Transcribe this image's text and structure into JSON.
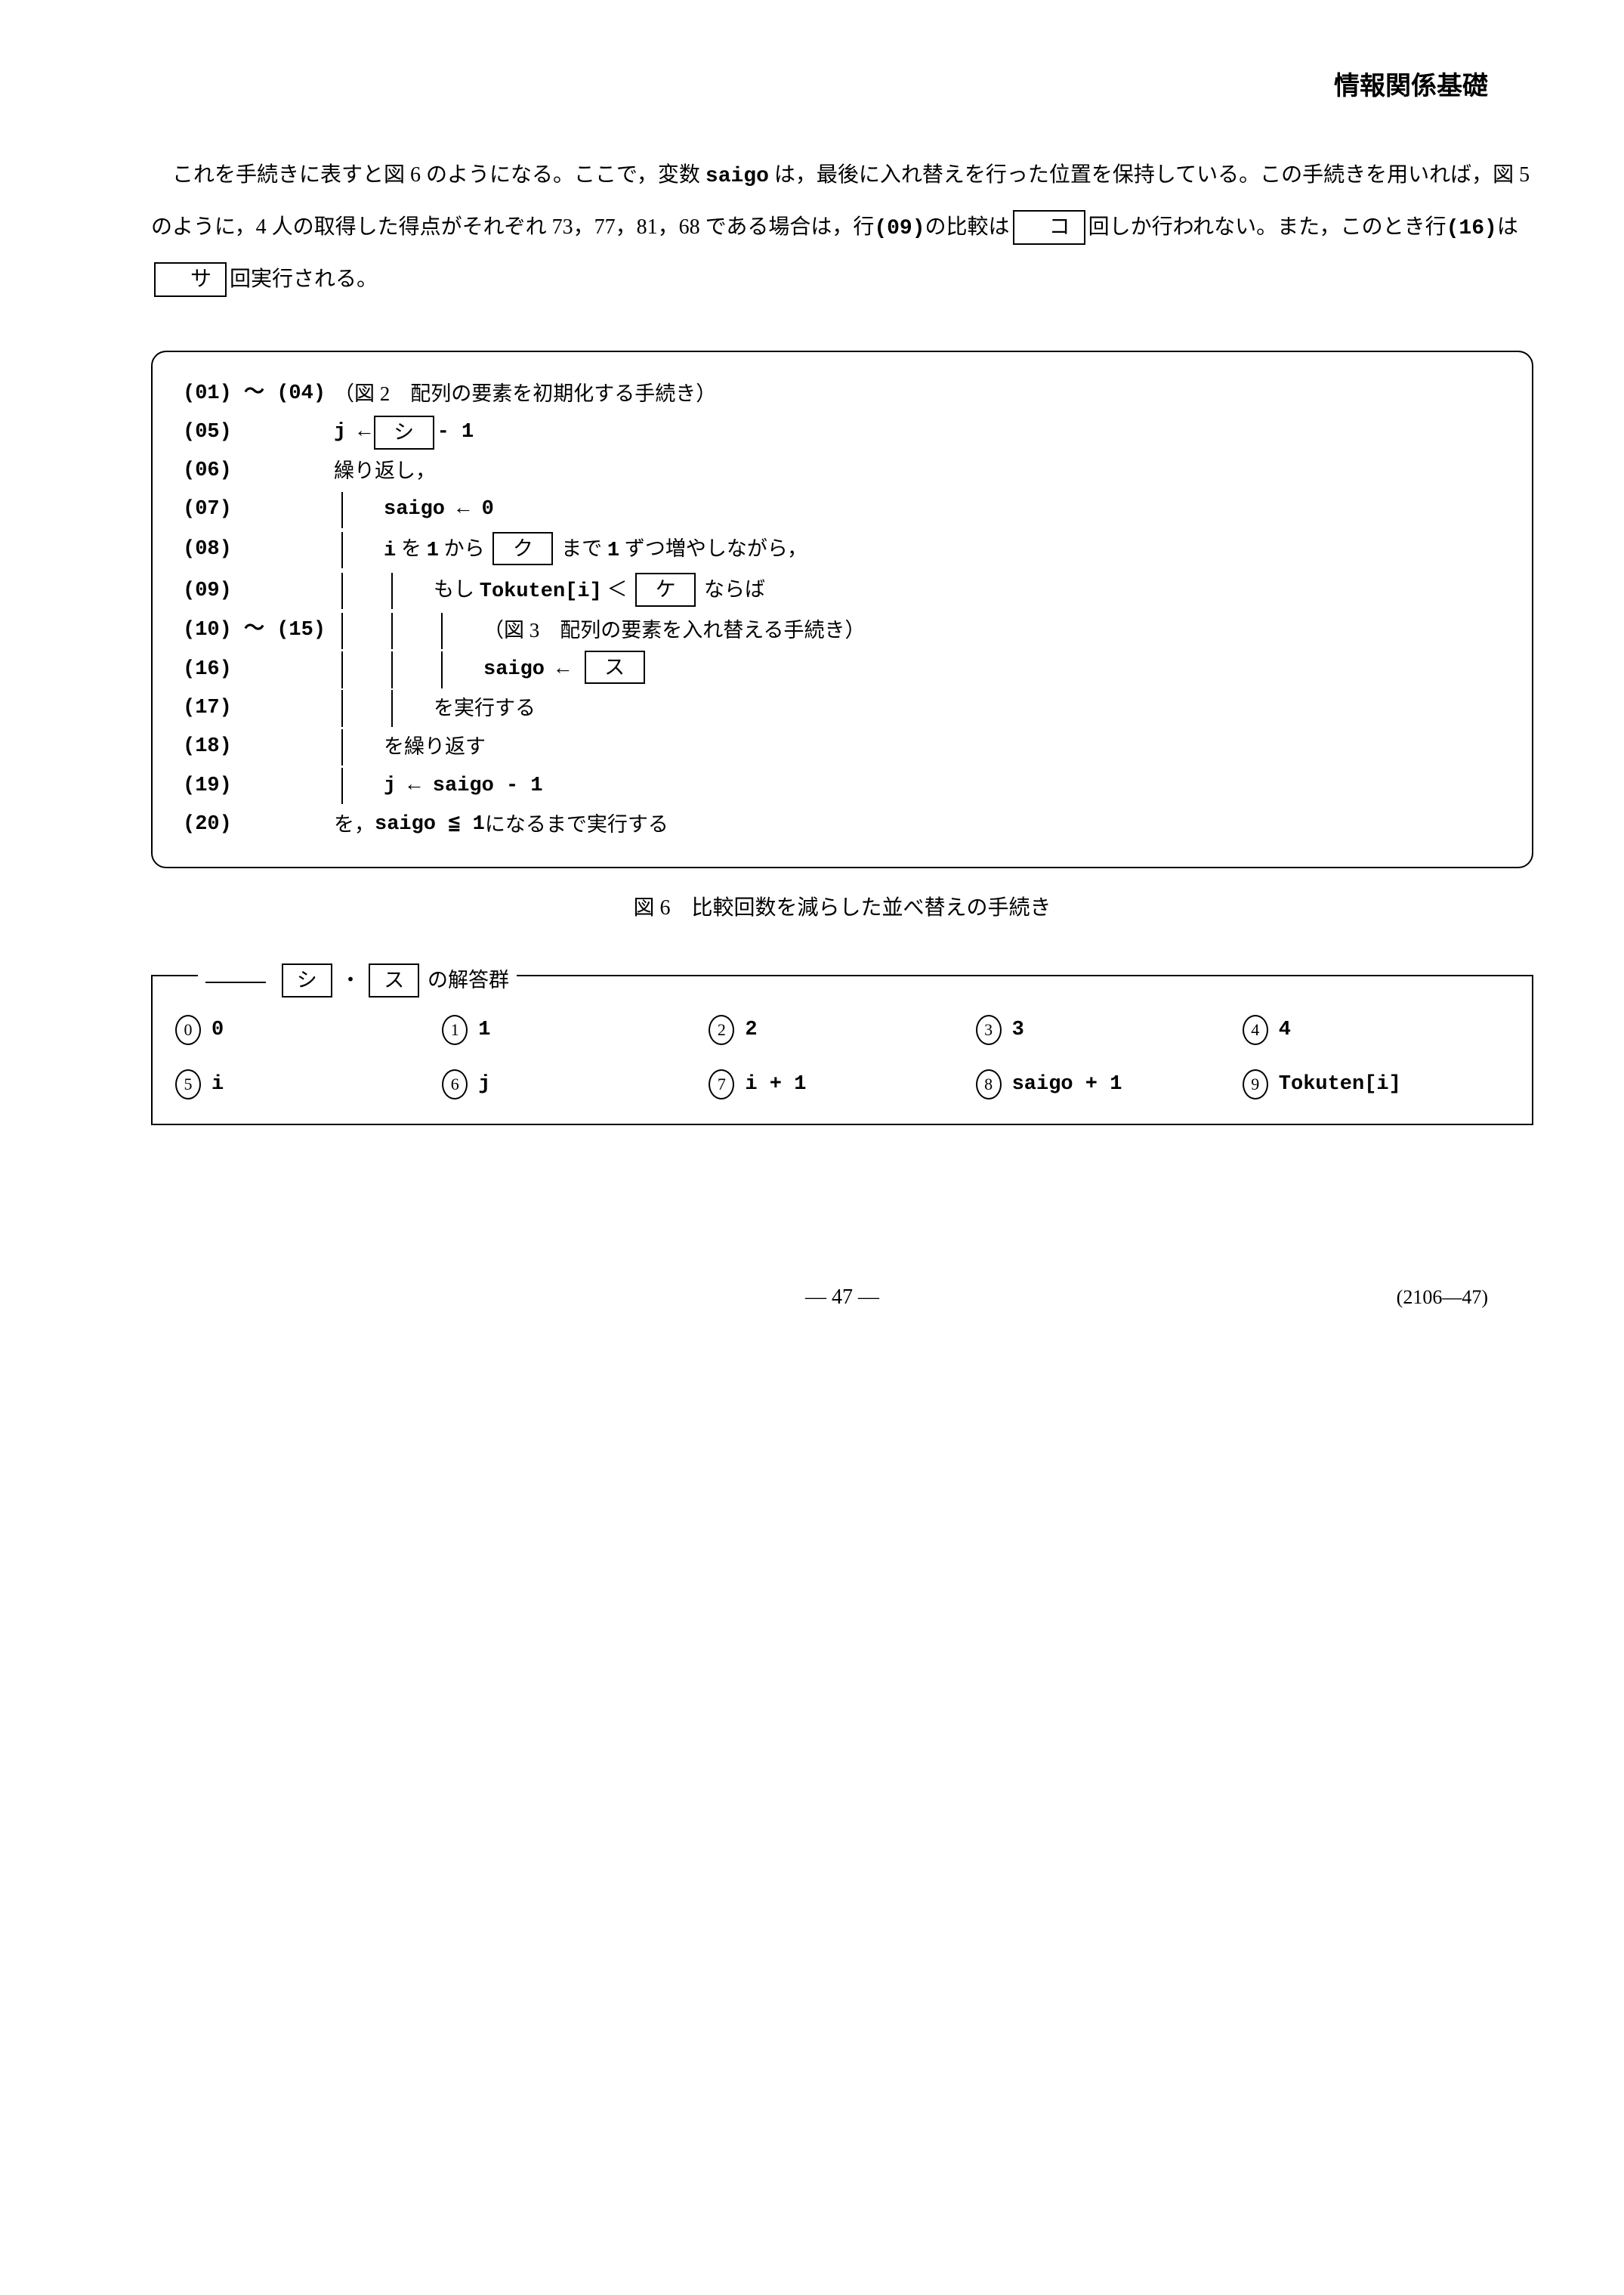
{
  "header": {
    "title": "情報関係基礎"
  },
  "paragraph": {
    "t1": "これを手続きに表すと図 6 のようになる。ここで，変数 ",
    "var1": "saigo",
    "t2": " は，最後に入れ替えを行った位置を保持している。この手続きを用いれば，図 5 のように，4 人の取得した得点がそれぞれ 73，77，81，68 である場合は，行",
    "row09": "(09)",
    "t3": "の比較は",
    "blank_ko": "コ",
    "t4": "回しか行われない。また，このとき行",
    "row16": "(16)",
    "t5": "は",
    "blank_sa": "サ",
    "t6": "回実行される。"
  },
  "code": {
    "l01": {
      "no": "(01) ～ (04)",
      "text": "（図 2　配列の要素を初期化する手続き）"
    },
    "l05": {
      "no": "(05)",
      "pre": "j ← ",
      "blank": "シ",
      "post": " - 1"
    },
    "l06": {
      "no": "(06)",
      "text": "繰り返し，"
    },
    "l07": {
      "no": "(07)",
      "text": "saigo ← 0"
    },
    "l08": {
      "no": "(08)",
      "pre": "i",
      "mid1": " を ",
      "one": "1",
      "mid2": " から ",
      "blank": "ク",
      "mid3": " まで ",
      "one2": "1",
      "post": " ずつ増やしながら，"
    },
    "l09": {
      "no": "(09)",
      "pre": "もし ",
      "tok": "Tokuten[i]",
      "lt": " ＜ ",
      "blank": "ケ",
      "post": " ならば"
    },
    "l10": {
      "no": "(10) ～ (15)",
      "text": "（図 3　配列の要素を入れ替える手続き）"
    },
    "l16": {
      "no": "(16)",
      "pre": "saigo ← ",
      "blank": "ス"
    },
    "l17": {
      "no": "(17)",
      "text": "を実行する"
    },
    "l18": {
      "no": "(18)",
      "text": "を繰り返す"
    },
    "l19": {
      "no": "(19)",
      "text": "j ← saigo - 1"
    },
    "l20": {
      "no": "(20)",
      "pre": "を，",
      "mid": "saigo ≦ 1",
      "post": " になるまで実行する"
    }
  },
  "caption": "図 6　比較回数を減らした並べ替えの手続き",
  "answers": {
    "title_blank1": "シ",
    "title_sep": "・",
    "title_blank2": "ス",
    "title_suffix": "の解答群",
    "opts": [
      {
        "n": "0",
        "v": "0"
      },
      {
        "n": "1",
        "v": "1"
      },
      {
        "n": "2",
        "v": "2"
      },
      {
        "n": "3",
        "v": "3"
      },
      {
        "n": "4",
        "v": "4"
      },
      {
        "n": "5",
        "v": "i"
      },
      {
        "n": "6",
        "v": "j"
      },
      {
        "n": "7",
        "v": "i + 1"
      },
      {
        "n": "8",
        "v": "saigo + 1"
      },
      {
        "n": "9",
        "v": "Tokuten[i]"
      }
    ]
  },
  "footer": {
    "page": "— 47 —",
    "code": "(2106—47)"
  }
}
